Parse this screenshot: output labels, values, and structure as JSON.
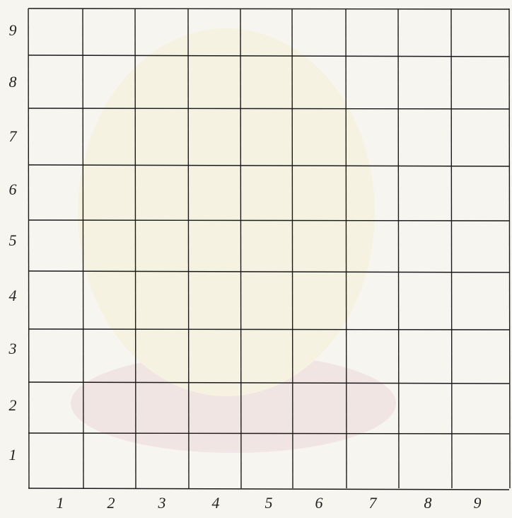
{
  "grid": {
    "row_labels": [
      "9",
      "8",
      "7",
      "6",
      "5",
      "4",
      "3",
      "2",
      "1"
    ],
    "column_labels": [
      "1",
      "2",
      "3",
      "4",
      "5",
      "6",
      "7",
      "8",
      "9"
    ]
  }
}
